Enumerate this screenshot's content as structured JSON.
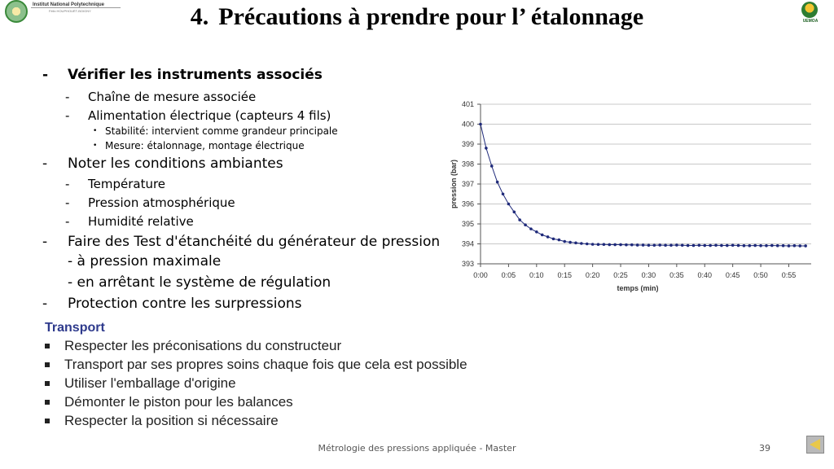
{
  "header": {
    "logo_left": {
      "line1": "Institut National Polytechnique",
      "line2": "Félix HOUPHOUËT-BOIGNY"
    },
    "logo_right": {
      "caption": "UEMOA"
    },
    "title_number": "4.",
    "title_text": "Précautions à prendre pour l’ étalonnage"
  },
  "outline": [
    {
      "level": 1,
      "bullet": "-",
      "text": "Vérifier les instruments associés",
      "bold": true
    },
    {
      "level": 2,
      "bullet": "-",
      "text": "Chaîne de mesure associée"
    },
    {
      "level": 2,
      "bullet": "-",
      "text": "Alimentation électrique (capteurs 4 fils)"
    },
    {
      "level": 3,
      "bullet": "•",
      "text": "Stabilité: intervient comme grandeur principale"
    },
    {
      "level": 3,
      "bullet": "•",
      "text": "Mesure: étalonnage, montage électrique"
    },
    {
      "level": 1,
      "bullet": "-",
      "text": "Noter les conditions ambiantes"
    },
    {
      "level": 2,
      "bullet": "-",
      "text": "Température"
    },
    {
      "level": 2,
      "bullet": "-",
      "text": "Pression atmosphérique"
    },
    {
      "level": 2,
      "bullet": "-",
      "text": "Humidité relative"
    },
    {
      "level": 1,
      "bullet": "-",
      "text": "Faire des Test d'étanchéité du générateur de pression"
    },
    {
      "level": 0,
      "text": "- à pression maximale"
    },
    {
      "level": 0,
      "text": "- en arrêtant le système de régulation"
    },
    {
      "level": 1,
      "bullet": "-",
      "text": "Protection contre les surpressions"
    }
  ],
  "transport": {
    "heading": "Transport",
    "items": [
      "Respecter les préconisations du constructeur",
      "Transport par ses propres soins chaque fois que cela est possible",
      "Utiliser l'emballage d'origine",
      "Démonter le piston pour les balances",
      "Respecter la position si nécessaire"
    ]
  },
  "chart_data": {
    "type": "line",
    "xlabel": "temps (min)",
    "ylabel": "pression (bar)",
    "xlim": [
      0,
      59
    ],
    "ylim": [
      393,
      401
    ],
    "x_ticks": [
      0,
      5,
      10,
      15,
      20,
      25,
      30,
      35,
      40,
      45,
      50,
      55
    ],
    "x_tick_labels": [
      "0:00",
      "0:05",
      "0:10",
      "0:15",
      "0:20",
      "0:25",
      "0:30",
      "0:35",
      "0:40",
      "0:45",
      "0:50",
      "0:55"
    ],
    "y_ticks": [
      393,
      394,
      395,
      396,
      397,
      398,
      399,
      400,
      401
    ],
    "y_tick_labels": [
      "393",
      "394",
      "395",
      "396",
      "397",
      "398",
      "399",
      "400",
      "401"
    ],
    "grid": "horizontal",
    "line_color": "#1f2a7a",
    "series": [
      {
        "x": [
          0,
          1,
          2,
          3,
          4,
          5,
          6,
          7,
          8,
          9,
          10,
          11,
          12,
          13,
          14,
          15,
          16,
          17,
          18,
          19,
          20,
          21,
          22,
          23,
          24,
          25,
          26,
          27,
          28,
          29,
          30,
          31,
          32,
          33,
          34,
          35,
          36,
          37,
          38,
          39,
          40,
          41,
          42,
          43,
          44,
          45,
          46,
          47,
          48,
          49,
          50,
          51,
          52,
          53,
          54,
          55,
          56,
          57,
          58
        ],
        "y": [
          400.0,
          398.8,
          397.9,
          397.1,
          396.5,
          396.0,
          395.6,
          395.2,
          394.95,
          394.75,
          394.6,
          394.45,
          394.35,
          394.25,
          394.2,
          394.12,
          394.08,
          394.05,
          394.02,
          394.0,
          393.98,
          393.97,
          393.97,
          393.96,
          393.96,
          393.96,
          393.95,
          393.95,
          393.94,
          393.94,
          393.93,
          393.93,
          393.94,
          393.93,
          393.93,
          393.94,
          393.93,
          393.92,
          393.92,
          393.93,
          393.92,
          393.92,
          393.93,
          393.92,
          393.92,
          393.93,
          393.92,
          393.91,
          393.91,
          393.92,
          393.91,
          393.91,
          393.92,
          393.91,
          393.91,
          393.9,
          393.91,
          393.9,
          393.9
        ]
      }
    ]
  },
  "footer": {
    "text": "Métrologie des pressions appliquée - Master",
    "page": "39"
  }
}
